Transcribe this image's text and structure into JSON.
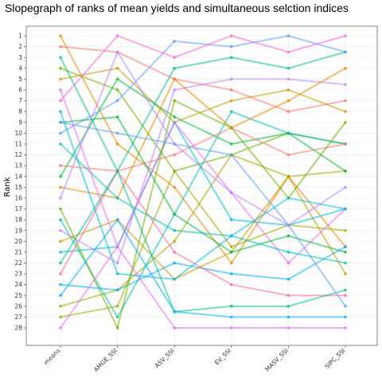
{
  "chart_data": {
    "type": "line",
    "title": "Slopegraph of ranks of mean yields and simultaneous selction indices",
    "xlabel": "",
    "ylabel": "Rank",
    "categories": [
      "means",
      "AMGE_SSI",
      "ASV_SSI",
      "EV_SSI",
      "MASV_SSI",
      "SIPC_SSI"
    ],
    "y_ticks": [
      "1",
      "2",
      "3",
      "4",
      "5",
      "6",
      "7",
      "8",
      "9",
      "10",
      "11",
      "12",
      "13",
      "14",
      "15",
      "16",
      "17",
      "18",
      "19",
      "20",
      "21",
      "22",
      "23",
      "24",
      "25",
      "26",
      "27",
      "28"
    ],
    "ylim": [
      1,
      28
    ],
    "y_reversed": true,
    "grid": true,
    "legend": "none",
    "series": [
      {
        "color": "#F8766D",
        "values": [
          2,
          2.5,
          5,
          6,
          8,
          7
        ]
      },
      {
        "color": "#E58700",
        "values": [
          1,
          11,
          15,
          22,
          14,
          20.5
        ]
      },
      {
        "color": "#C99800",
        "values": [
          5,
          4,
          9,
          7,
          6,
          8
        ]
      },
      {
        "color": "#A3A500",
        "values": [
          26,
          24.5,
          20,
          12,
          14,
          13.5
        ]
      },
      {
        "color": "#6BB100",
        "values": [
          4,
          6,
          13.5,
          12,
          10,
          11
        ]
      },
      {
        "color": "#00BA38",
        "values": [
          14,
          5,
          8.5,
          11,
          10,
          13.5
        ]
      },
      {
        "color": "#00BF7D",
        "values": [
          3,
          13.5,
          4,
          3,
          4,
          2.5
        ]
      },
      {
        "color": "#00C0AF",
        "values": [
          18,
          27,
          17.5,
          8,
          10,
          11
        ]
      },
      {
        "color": "#00BCD8",
        "values": [
          21,
          20.5,
          9,
          18,
          18.5,
          17
        ]
      },
      {
        "color": "#00B0F6",
        "values": [
          24,
          24.5,
          22,
          23,
          23.5,
          20.5
        ]
      },
      {
        "color": "#619CFF",
        "values": [
          10,
          7,
          1.5,
          2,
          1,
          2.5
        ]
      },
      {
        "color": "#B983FF",
        "values": [
          19,
          22,
          6,
          5,
          5,
          5.5
        ]
      },
      {
        "color": "#E76BF3",
        "values": [
          28,
          20.5,
          9,
          15.5,
          22,
          17
        ]
      },
      {
        "color": "#FD61D1",
        "values": [
          7,
          1,
          3,
          1,
          2.5,
          1
        ]
      },
      {
        "color": "#FF67A4",
        "values": [
          23,
          13.5,
          21,
          24,
          25,
          25
        ]
      },
      {
        "color": "#F8766D",
        "values": [
          13,
          13.5,
          12,
          9.5,
          12,
          11
        ]
      },
      {
        "color": "#E58700",
        "values": [
          15,
          16,
          5,
          9.5,
          7,
          4
        ]
      },
      {
        "color": "#C99800",
        "values": [
          20,
          18,
          23.5,
          21,
          14,
          23
        ]
      },
      {
        "color": "#A3A500",
        "values": [
          27,
          26,
          13.5,
          20.5,
          18.5,
          19
        ]
      },
      {
        "color": "#6BB100",
        "values": [
          17,
          28,
          7,
          9.5,
          16,
          9
        ]
      },
      {
        "color": "#00BA38",
        "values": [
          9,
          8.5,
          17.5,
          21,
          19.5,
          21
        ]
      },
      {
        "color": "#00BF7D",
        "values": [
          22,
          13.5,
          26.5,
          26,
          26,
          24.5
        ]
      },
      {
        "color": "#00C0AF",
        "values": [
          11,
          16,
          19,
          19.5,
          21,
          22
        ]
      },
      {
        "color": "#00BCD8",
        "values": [
          8,
          23,
          23.5,
          19.5,
          16,
          17
        ]
      },
      {
        "color": "#00B0F6",
        "values": [
          25,
          18,
          26.5,
          27,
          27,
          27
        ]
      },
      {
        "color": "#619CFF",
        "values": [
          9,
          10,
          11,
          12,
          18.5,
          26
        ]
      },
      {
        "color": "#B983FF",
        "values": [
          16,
          2.5,
          11,
          15.5,
          18.5,
          15
        ]
      },
      {
        "color": "#E76BF3",
        "values": [
          6,
          20.5,
          28,
          28,
          28,
          28
        ]
      }
    ]
  }
}
